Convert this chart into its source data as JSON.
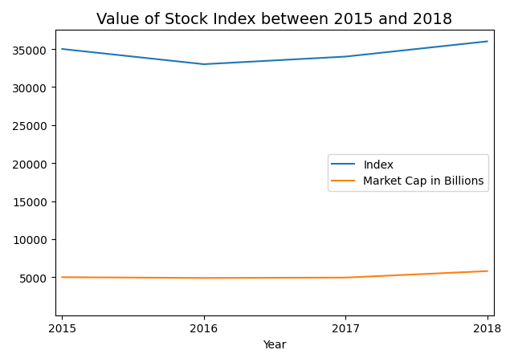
{
  "title": "Value of Stock Index between 2015 and 2018",
  "xlabel": "Year",
  "years": [
    2015,
    2016,
    2017,
    2018
  ],
  "index_values": [
    35000,
    33000,
    34000,
    36000
  ],
  "market_cap_values": [
    5000,
    4900,
    4950,
    5800
  ],
  "index_color": "#1f77b4",
  "market_cap_color": "#ff7f0e",
  "index_label": "Index",
  "market_cap_label": "Market Cap in Billions",
  "ylim_top": 37500,
  "yticks": [
    5000,
    10000,
    15000,
    20000,
    25000,
    30000,
    35000
  ],
  "xticks": [
    2015,
    2016,
    2017,
    2018
  ],
  "legend_loc": "center right",
  "figsize": [
    6.4,
    4.52
  ],
  "title_fontsize": 14
}
